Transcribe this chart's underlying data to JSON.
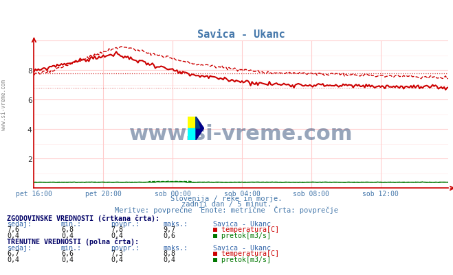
{
  "title": "Savica - Ukanc",
  "title_color": "#4477aa",
  "background_color": "#ffffff",
  "plot_bg_color": "#ffffff",
  "grid_color_h": "#ffcccc",
  "grid_color_v": "#ffcccc",
  "axis_color": "#cc0000",
  "xlim": [
    0,
    287
  ],
  "ylim": [
    0,
    10
  ],
  "yticks": [
    2,
    4,
    6,
    8
  ],
  "xtick_labels": [
    "pet 16:00",
    "pet 20:00",
    "sob 00:00",
    "sob 04:00",
    "sob 08:00",
    "sob 12:00"
  ],
  "xtick_positions": [
    0,
    48,
    96,
    144,
    192,
    240
  ],
  "subtitle1": "Slovenija / reke in morje.",
  "subtitle2": "zadnji dan / 5 minut.",
  "subtitle3": "Meritve: povprečne  Enote: metrične  Črta: povprečje",
  "subtitle_color": "#4477aa",
  "watermark": "www.si-vreme.com",
  "watermark_color": "#1a3a6a",
  "temp_color": "#cc0000",
  "flow_color": "#007700",
  "hist_avg_temp": 7.8,
  "hist_min_temp": 6.8,
  "hist_max_temp": 9.7,
  "hist_sedaj_temp": 7.6,
  "hist_avg_flow": 0.4,
  "hist_min_flow": 0.4,
  "hist_max_flow": 0.6,
  "hist_sedaj_flow": 0.4,
  "cur_sedaj_temp": 6.7,
  "cur_min_temp": 6.6,
  "cur_avg_temp": 7.3,
  "cur_max_temp": 8.8,
  "cur_sedaj_flow": 0.4,
  "cur_min_flow": 0.4,
  "cur_avg_flow": 0.4,
  "cur_max_flow": 0.4,
  "left_label": "www.si-vreme.com",
  "figwidth": 6.59,
  "figheight": 4.02,
  "dpi": 100
}
